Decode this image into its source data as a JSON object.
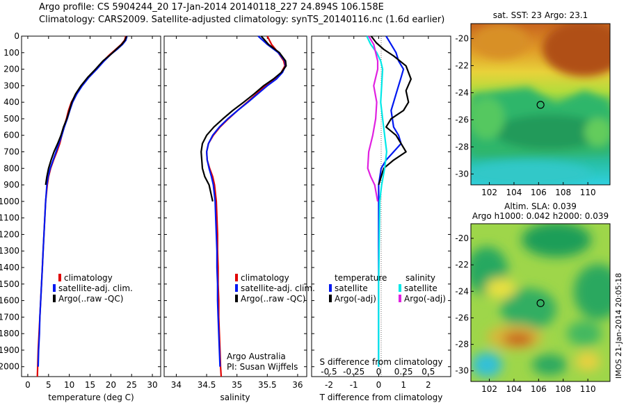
{
  "titles": {
    "line1": "Argo profile: CS 5904244_20 17-Jan-2014 20140118_227 24.894S 106.158E",
    "line2": "Climatology: CARS2009. Satellite-adjusted climatology: synTS_20140116.nc (1.6d earlier)"
  },
  "footer": {
    "credit_line1": "Argo Australia",
    "credit_line2": "PI: Susan Wijffels",
    "imos": "IMOS 21-Jan-2014 20:05:18"
  },
  "colors": {
    "climatology": "#e00000",
    "satellite": "#0018f0",
    "argo": "#000000",
    "sal_satellite": "#00e8e8",
    "sal_argo": "#e020e0"
  },
  "chart_data": [
    {
      "id": "temperature",
      "type": "line",
      "xlabel": "temperature (deg C)",
      "ylabel": "",
      "xlim": [
        -1.5,
        32
      ],
      "ylim": [
        2060,
        0
      ],
      "y_reversed": true,
      "xticks": [
        0,
        5,
        10,
        15,
        20,
        25,
        30
      ],
      "xtick_labels": [
        "0",
        "5",
        "10",
        "15",
        "20",
        "25",
        "30"
      ],
      "yticks": [
        0,
        100,
        200,
        300,
        400,
        500,
        600,
        700,
        800,
        900,
        1000,
        1100,
        1200,
        1300,
        1400,
        1500,
        1600,
        1700,
        1800,
        1900,
        2000
      ],
      "ytick_labels": [
        "0",
        "100",
        "200",
        "300",
        "400",
        "500",
        "600",
        "700",
        "800",
        "900",
        "1000",
        "1100",
        "1200",
        "1300",
        "1400",
        "1500",
        "1600",
        "1700",
        "1800",
        "1900",
        "2000"
      ],
      "legend": [
        "climatology",
        "satellite-adj. clim.",
        "Argo(..raw -QC)"
      ],
      "series": [
        {
          "name": "climatology",
          "color": "#e00000",
          "x": [
            23.6,
            23.3,
            22.5,
            21.2,
            19.8,
            18.2,
            16.5,
            14.6,
            13.0,
            11.6,
            10.5,
            9.8,
            9.3,
            8.7,
            8.2,
            7.7,
            7.0,
            6.2,
            5.5,
            5.0,
            4.7,
            4.3,
            4.1,
            3.9,
            3.7,
            3.5,
            3.3,
            3.1,
            2.9,
            2.7,
            2.5,
            2.3
          ],
          "y": [
            0,
            25,
            50,
            80,
            110,
            150,
            200,
            250,
            300,
            350,
            400,
            450,
            500,
            550,
            600,
            650,
            700,
            750,
            800,
            850,
            900,
            1000,
            1100,
            1200,
            1300,
            1400,
            1500,
            1600,
            1700,
            1800,
            1900,
            2060
          ]
        },
        {
          "name": "satellite-adj. clim.",
          "color": "#0018f0",
          "x": [
            23.9,
            23.6,
            22.8,
            21.5,
            20.0,
            18.4,
            16.6,
            14.7,
            13.1,
            11.8,
            10.8,
            10.1,
            9.5,
            8.8,
            8.2,
            7.5,
            6.8,
            6.1,
            5.4,
            4.9,
            4.6,
            4.3,
            4.1,
            3.9,
            3.7,
            3.5,
            3.3,
            3.1,
            2.9,
            2.8,
            2.6,
            2.5
          ],
          "y": [
            0,
            25,
            50,
            80,
            110,
            150,
            200,
            250,
            300,
            350,
            400,
            450,
            500,
            550,
            600,
            650,
            700,
            750,
            800,
            850,
            900,
            1000,
            1100,
            1200,
            1300,
            1400,
            1500,
            1600,
            1700,
            1800,
            1900,
            2000
          ]
        },
        {
          "name": "Argo(..raw -QC)",
          "color": "#000000",
          "x": [
            23.8,
            23.4,
            22.6,
            21.3,
            20.0,
            18.1,
            16.3,
            14.4,
            12.8,
            11.5,
            10.6,
            10.0,
            9.4,
            8.6,
            8.0,
            7.2,
            6.3,
            5.6,
            5.0,
            4.6,
            4.3
          ],
          "y": [
            0,
            25,
            50,
            80,
            110,
            150,
            200,
            250,
            300,
            350,
            400,
            450,
            500,
            550,
            600,
            650,
            700,
            750,
            800,
            850,
            900
          ]
        }
      ]
    },
    {
      "id": "salinity",
      "type": "line",
      "xlabel": "salinity",
      "xlim": [
        33.8,
        36.15
      ],
      "ylim": [
        2060,
        0
      ],
      "y_reversed": true,
      "xticks": [
        34,
        34.5,
        35,
        35.5,
        36
      ],
      "xtick_labels": [
        "34",
        "34.5",
        "35",
        "35.5",
        "36"
      ],
      "legend": [
        "climatology",
        "satellite-adj. clim.",
        "Argo(..raw -QC)"
      ],
      "series": [
        {
          "name": "climatology",
          "color": "#e00000",
          "x": [
            35.5,
            35.57,
            35.68,
            35.77,
            35.79,
            35.73,
            35.62,
            35.47,
            35.32,
            35.17,
            35.01,
            34.86,
            34.72,
            34.61,
            34.53,
            34.5,
            34.51,
            34.55,
            34.6,
            34.63,
            34.66,
            34.67,
            34.68,
            34.68,
            34.69,
            34.69,
            34.7,
            34.7,
            34.71,
            34.72,
            34.73,
            34.74
          ],
          "y": [
            0,
            50,
            100,
            150,
            180,
            220,
            260,
            300,
            350,
            400,
            450,
            500,
            550,
            600,
            650,
            700,
            750,
            800,
            850,
            900,
            1000,
            1100,
            1200,
            1300,
            1400,
            1500,
            1600,
            1700,
            1800,
            1900,
            2000,
            2060
          ]
        },
        {
          "name": "satellite-adj. clim.",
          "color": "#0018f0",
          "x": [
            35.35,
            35.5,
            35.68,
            35.79,
            35.8,
            35.75,
            35.65,
            35.5,
            35.34,
            35.18,
            35.01,
            34.85,
            34.71,
            34.6,
            34.53,
            34.5,
            34.51,
            34.54,
            34.58,
            34.61,
            34.64,
            34.65,
            34.66,
            34.67,
            34.67,
            34.68,
            34.68,
            34.69,
            34.7,
            34.71,
            34.72
          ],
          "y": [
            0,
            50,
            100,
            150,
            180,
            220,
            260,
            300,
            350,
            400,
            450,
            500,
            550,
            600,
            650,
            700,
            750,
            800,
            850,
            900,
            1000,
            1100,
            1200,
            1300,
            1400,
            1500,
            1600,
            1700,
            1800,
            1900,
            2000
          ]
        },
        {
          "name": "Argo(..raw -QC)",
          "color": "#000000",
          "x": [
            35.4,
            35.52,
            35.7,
            35.8,
            35.81,
            35.73,
            35.6,
            35.44,
            35.28,
            35.11,
            34.93,
            34.77,
            34.62,
            34.5,
            34.43,
            34.41,
            34.42,
            34.43,
            34.47,
            34.54,
            34.6
          ],
          "y": [
            0,
            50,
            100,
            150,
            180,
            220,
            260,
            300,
            350,
            400,
            450,
            500,
            550,
            600,
            650,
            700,
            750,
            800,
            850,
            900,
            1000
          ]
        }
      ]
    },
    {
      "id": "differences",
      "type": "line",
      "xlabel": "T difference from climatology",
      "top_label": "S difference from climatology",
      "xlim": [
        -2.7,
        2.9
      ],
      "ylim": [
        2060,
        0
      ],
      "y_reversed": true,
      "xticks": [
        -2,
        -1,
        0,
        1,
        2
      ],
      "xtick_labels": [
        "-2",
        "-1",
        "0",
        "1",
        "2"
      ],
      "sticks_labels": [
        "-0.5",
        "-0.25",
        "0",
        "0.25",
        "0.5"
      ],
      "legend_groups": [
        {
          "title": "temperature",
          "items": [
            "satellite",
            "Argo(-adj)"
          ]
        },
        {
          "title": "salinity",
          "items": [
            "satellite",
            "Argo(-adj)"
          ]
        }
      ],
      "series": [
        {
          "name": "temperature satellite",
          "color": "#0018f0",
          "x": [
            0.3,
            0.5,
            0.7,
            0.8,
            1.0,
            0.9,
            0.8,
            0.7,
            0.6,
            0.5,
            0.55,
            0.6,
            0.8,
            0.9,
            0.6,
            0.3,
            0.1,
            0.05,
            0.0,
            0.0,
            0.0
          ],
          "y": [
            0,
            50,
            100,
            150,
            200,
            250,
            300,
            350,
            400,
            450,
            500,
            550,
            600,
            650,
            700,
            750,
            800,
            850,
            900,
            1000,
            2000
          ]
        },
        {
          "name": "temperature Argo(-adj)",
          "color": "#000000",
          "x": [
            -0.3,
            -0.1,
            0.2,
            0.6,
            1.1,
            1.3,
            1.1,
            1.2,
            1.0,
            0.5,
            0.3,
            0.7,
            0.9,
            1.1,
            0.6,
            0.2,
            0.1,
            0.0
          ],
          "y": [
            0,
            40,
            80,
            120,
            180,
            260,
            330,
            400,
            450,
            500,
            550,
            600,
            650,
            700,
            750,
            800,
            850,
            900
          ]
        },
        {
          "name": "salinity satellite",
          "color": "#00e8e8",
          "x": [
            -0.12,
            -0.08,
            -0.02,
            0.02,
            0.04,
            0.03,
            0.02,
            0.04,
            0.06,
            0.08,
            0.06,
            0.03,
            0.01,
            0.0,
            0.0
          ],
          "y": [
            0,
            50,
            100,
            150,
            200,
            300,
            400,
            500,
            600,
            700,
            800,
            900,
            1000,
            1500,
            2000
          ]
        },
        {
          "name": "salinity Argo(-adj)",
          "color": "#e020e0",
          "x": [
            -0.1,
            -0.05,
            -0.03,
            -0.01,
            -0.01,
            -0.05,
            -0.02,
            -0.03,
            -0.06,
            -0.1,
            -0.11,
            -0.08,
            -0.04,
            -0.01
          ],
          "y": [
            0,
            50,
            100,
            150,
            200,
            300,
            400,
            500,
            600,
            700,
            800,
            850,
            900,
            1000
          ]
        }
      ]
    },
    {
      "id": "sst_map",
      "type": "heatmap",
      "title": "sat. SST: 23 Argo: 23.1",
      "xlim": [
        100.5,
        111.8
      ],
      "ylim": [
        -30.8,
        -18.9
      ],
      "xticks": [
        102,
        104,
        106,
        108,
        110
      ],
      "yticks": [
        -20,
        -22,
        -24,
        -26,
        -28,
        -30
      ],
      "marker": {
        "lon": 106.158,
        "lat": -24.894
      }
    },
    {
      "id": "sla_map",
      "type": "heatmap",
      "title_line1": "Altim. SLA: 0.039",
      "title_line2": "Argo h1000: 0.042 h2000: 0.039",
      "xlim": [
        100.5,
        111.8
      ],
      "ylim": [
        -30.8,
        -18.9
      ],
      "xticks": [
        102,
        104,
        106,
        108,
        110
      ],
      "yticks": [
        -20,
        -22,
        -24,
        -26,
        -28,
        -30
      ],
      "marker": {
        "lon": 106.158,
        "lat": -24.894
      }
    }
  ]
}
